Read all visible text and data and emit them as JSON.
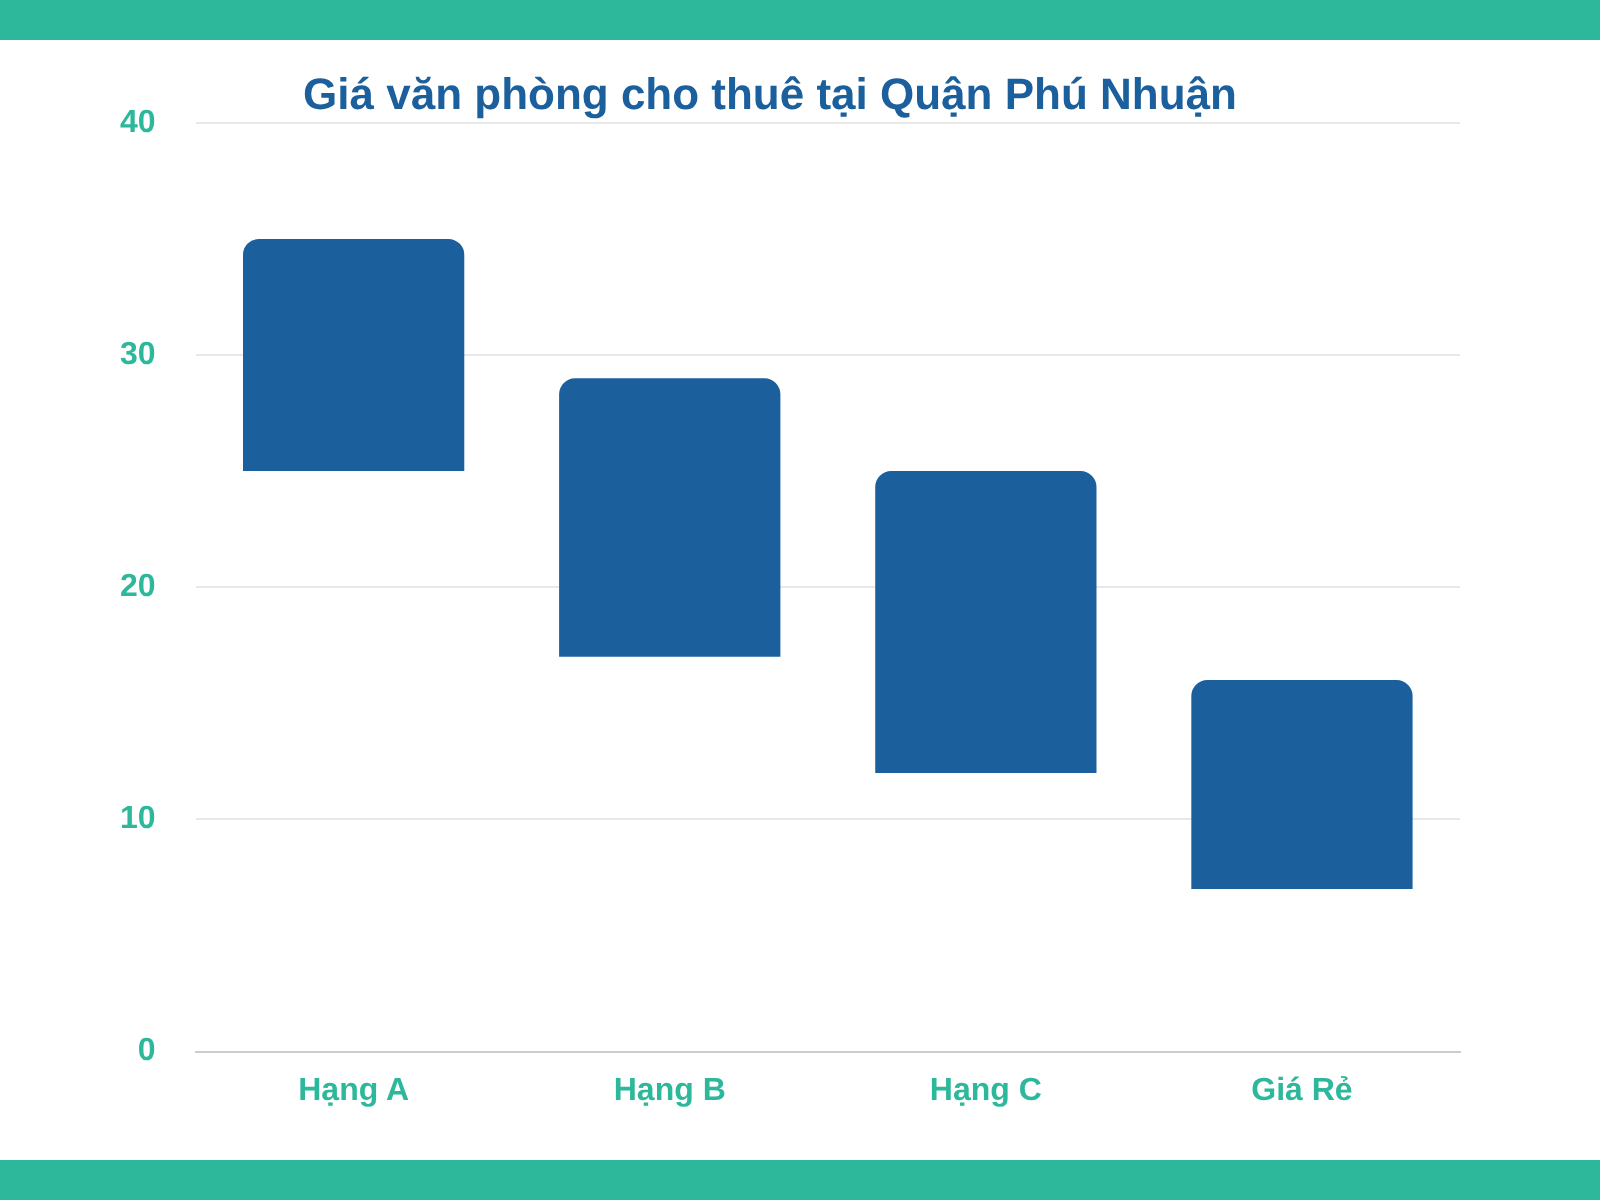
{
  "chart_data": {
    "type": "bar",
    "title": "Giá văn phòng cho thuê tại Quận Phú Nhuận",
    "categories": [
      "Hạng A",
      "Hạng B",
      "Hạng C",
      "Giá Rẻ"
    ],
    "base": [
      25,
      17,
      12,
      7
    ],
    "values": [
      10,
      12,
      13,
      9
    ],
    "color": "#1b5f9c",
    "ylim": [
      0,
      40
    ],
    "yticks": [
      0,
      10,
      20,
      30,
      40
    ],
    "grid": "y",
    "legend": false
  }
}
